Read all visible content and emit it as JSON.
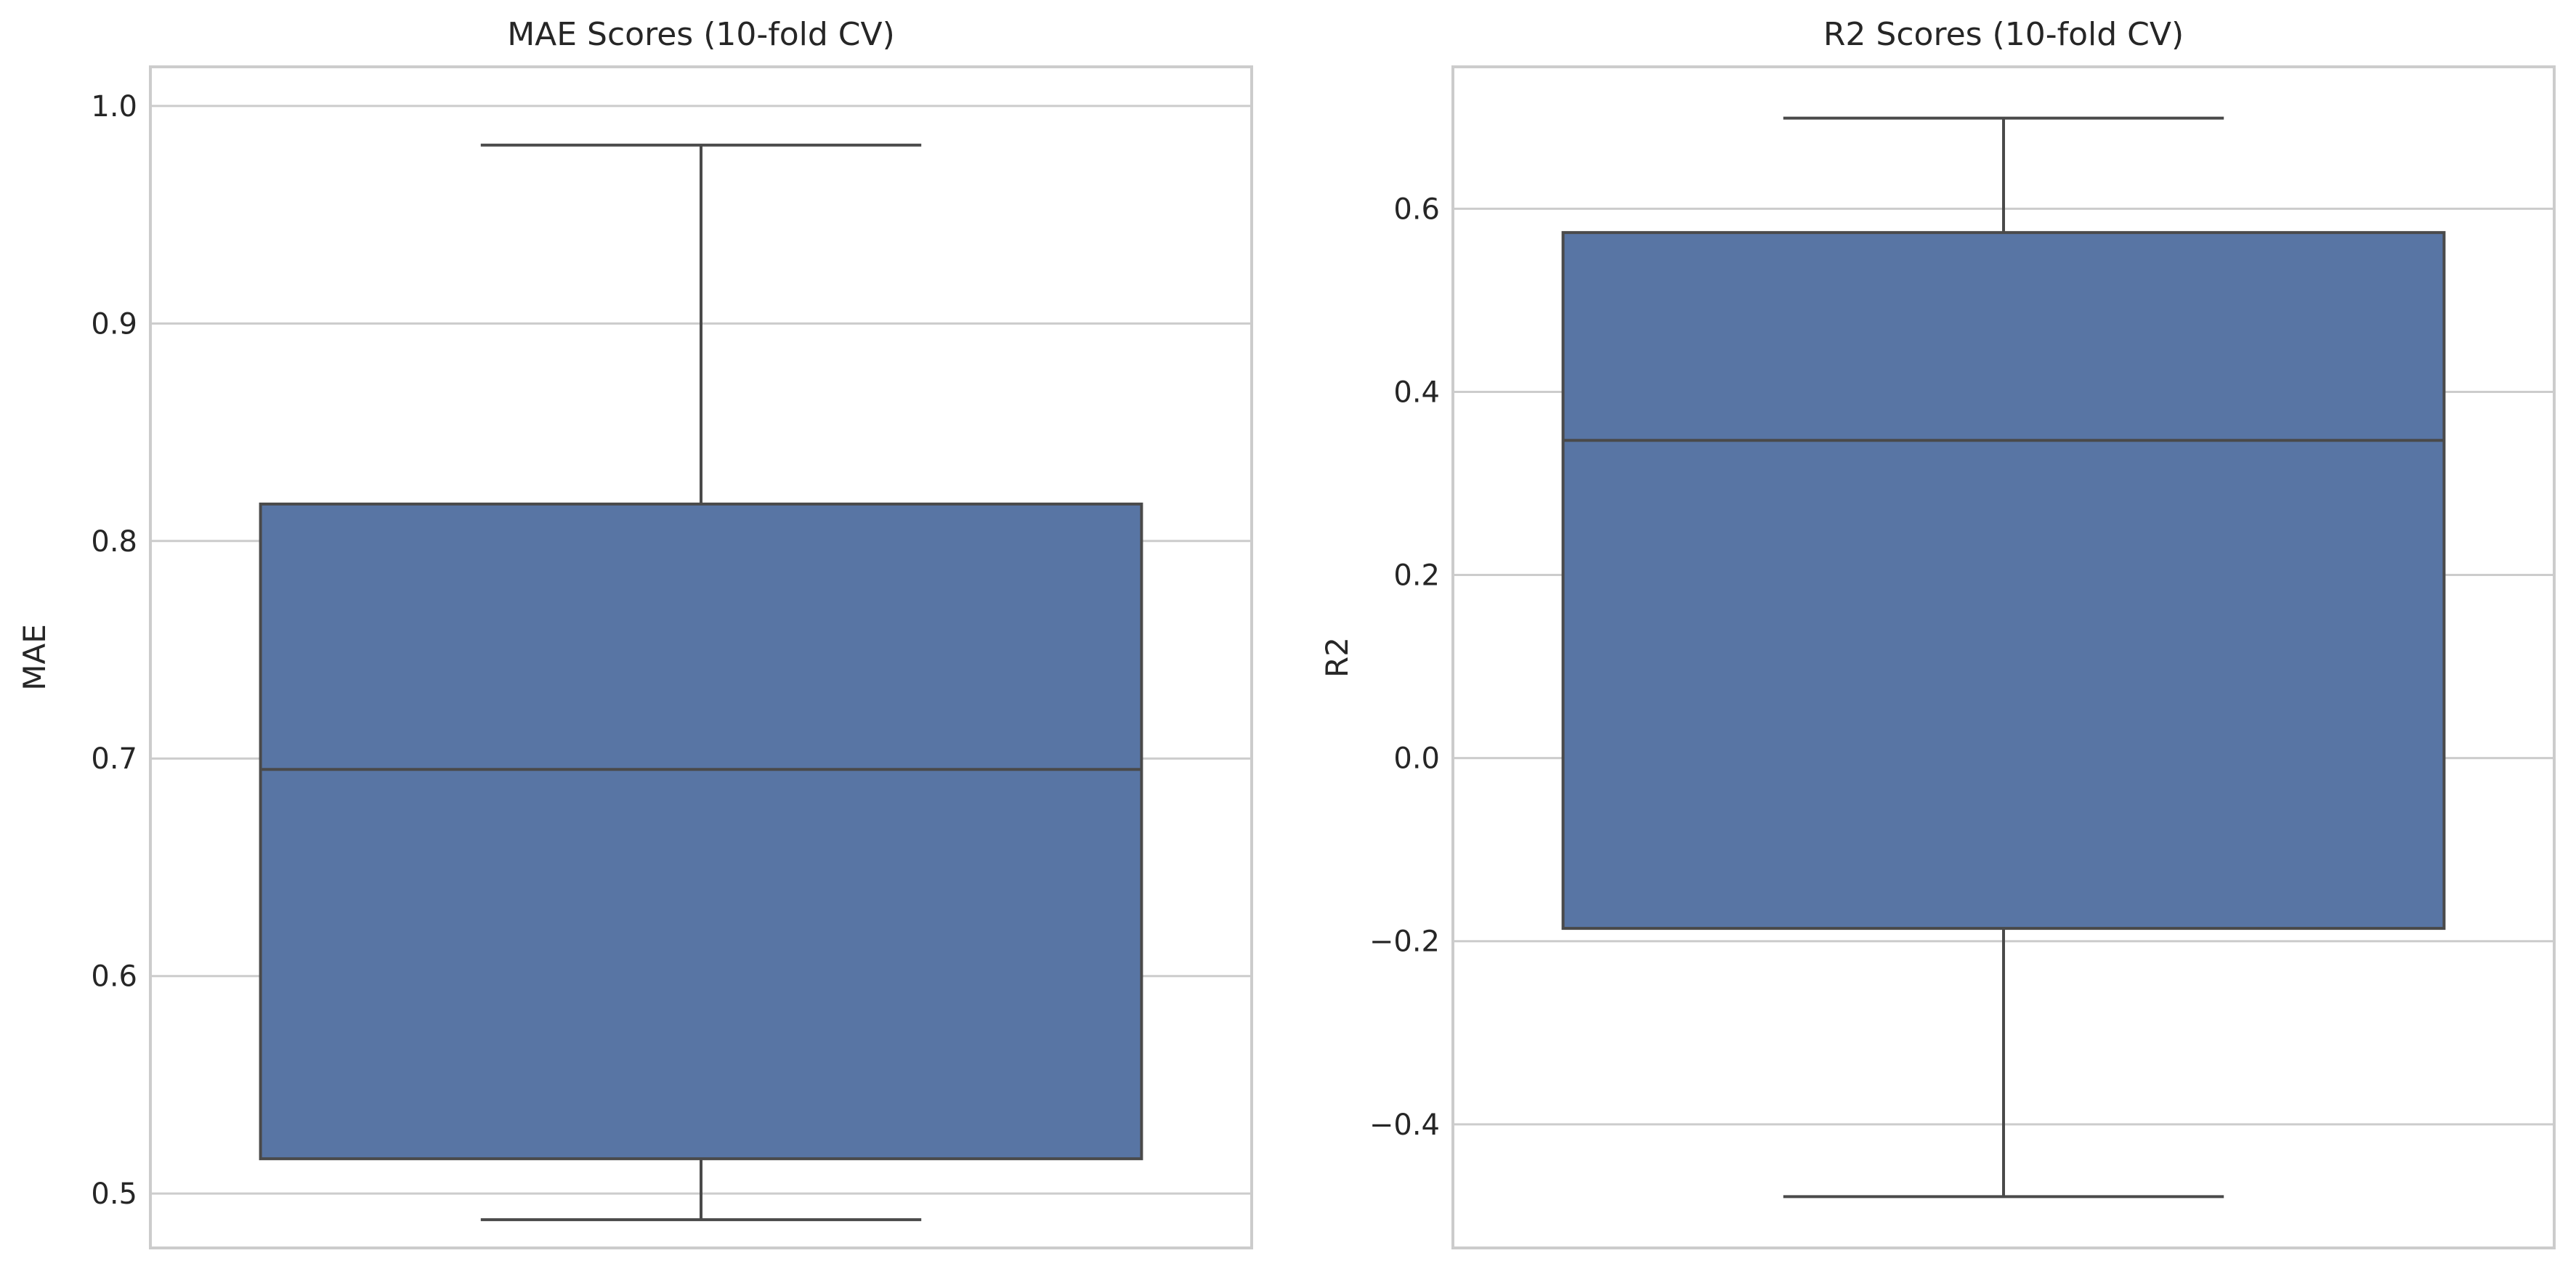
{
  "chart_data": [
    {
      "type": "box",
      "title": "MAE Scores (10-fold CV)",
      "xlabel": "",
      "ylabel": "MAE",
      "ylim": [
        0.475,
        1.018
      ],
      "yticks": [
        0.5,
        0.6,
        0.7,
        0.8,
        0.9,
        1.0
      ],
      "ytick_labels": [
        "0.5",
        "0.6",
        "0.7",
        "0.8",
        "0.9",
        "1.0"
      ],
      "grid": true,
      "box_color": "#5875a4",
      "boxes": [
        {
          "whisker_low": 0.488,
          "q1": 0.516,
          "median": 0.695,
          "q3": 0.817,
          "whisker_high": 0.982
        }
      ]
    },
    {
      "type": "box",
      "title": "R2 Scores (10-fold CV)",
      "xlabel": "",
      "ylabel": "R2",
      "ylim": [
        -0.535,
        0.755
      ],
      "yticks": [
        -0.4,
        -0.2,
        0.0,
        0.2,
        0.4,
        0.6
      ],
      "ytick_labels": [
        "−0.4",
        "−0.2",
        "0.0",
        "0.2",
        "0.4",
        "0.6"
      ],
      "grid": true,
      "box_color": "#5875a4",
      "boxes": [
        {
          "whisker_low": -0.479,
          "q1": -0.186,
          "median": 0.347,
          "q3": 0.574,
          "whisker_high": 0.699
        }
      ]
    }
  ]
}
